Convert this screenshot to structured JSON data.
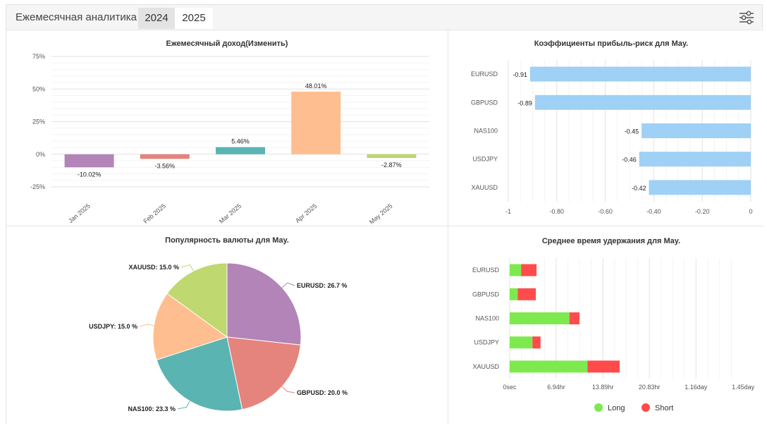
{
  "header": {
    "title": "Ежемесячная аналитика",
    "tabs": [
      {
        "label": "2024",
        "active": true
      },
      {
        "label": "2025",
        "active": false
      }
    ],
    "settings_icon": "sliders-icon"
  },
  "colors": {
    "long": "#7ee94f",
    "short": "#ff4b4b",
    "hbar": "#9fd0f5"
  },
  "chart_data": [
    {
      "type": "bar",
      "title": "Ежемесячный доход(Изменить)",
      "categories": [
        "Jan 2025",
        "Feb 2025",
        "Mar 2025",
        "Apr 2025",
        "May 2025"
      ],
      "values": [
        -10.02,
        -3.56,
        5.46,
        48.01,
        -2.87
      ],
      "value_labels": [
        "-10.02%",
        "-3.56%",
        "5.46%",
        "48.01%",
        "-2.87%"
      ],
      "bar_colors": [
        "#b384b8",
        "#e5837d",
        "#5ab4b2",
        "#ffbe8f",
        "#bcd76e"
      ],
      "ylim": [
        -25,
        75
      ],
      "yticks": [
        75,
        50,
        25,
        0,
        -25
      ],
      "ytick_labels": [
        "75%",
        "50%",
        "25%",
        "0%",
        "-25%"
      ],
      "grid": true
    },
    {
      "type": "bar",
      "orientation": "horizontal",
      "title": "Коэффициенты прибыль-риск для May.",
      "categories": [
        "EURUSD",
        "GBPUSD",
        "NAS100",
        "USDJPY",
        "XAUUSD"
      ],
      "values": [
        -0.91,
        -0.89,
        -0.45,
        -0.46,
        -0.42
      ],
      "value_labels": [
        "-0.91",
        "-0.89",
        "-0.45",
        "-0.46",
        "-0.42"
      ],
      "xlim": [
        -1,
        0
      ],
      "xticks": [
        -1,
        -0.8,
        -0.6,
        -0.4,
        -0.2,
        0
      ],
      "xtick_labels": [
        "-1",
        "-0.80",
        "-0.60",
        "-0.40",
        "-0.20",
        "0"
      ],
      "grid": true
    },
    {
      "type": "pie",
      "title": "Популярность валюты для May.",
      "labels": [
        "EURUSD",
        "GBPUSD",
        "NAS100",
        "USDJPY",
        "XAUUSD"
      ],
      "values": [
        26.7,
        20.0,
        23.3,
        15.0,
        15.0
      ],
      "value_labels": [
        "EURUSD: 26.7 %",
        "GBPUSD: 20.0 %",
        "NAS100: 23.3 %",
        "USDJPY: 15.0 %",
        "XAUUSD: 15.0 %"
      ],
      "colors": [
        "#b384b8",
        "#e5837d",
        "#5ab4b2",
        "#ffbe8f",
        "#bfd86f"
      ]
    },
    {
      "type": "bar",
      "orientation": "horizontal",
      "stacked": true,
      "title": "Среднее время удержания для May.",
      "categories": [
        "EURUSD",
        "GBPUSD",
        "NAS100",
        "USDJPY",
        "XAUUSD"
      ],
      "xlim_hours": [
        0,
        35
      ],
      "xticks_hours": [
        0,
        6.94,
        13.89,
        20.83,
        27.78,
        34.8
      ],
      "xtick_labels": [
        "0sec",
        "6.94hr",
        "13.89hr",
        "20.83hr",
        "1.16day",
        "1.45day"
      ],
      "series": [
        {
          "name": "Long",
          "values_hours": [
            1.7,
            1.2,
            8.9,
            3.4,
            11.6
          ]
        },
        {
          "name": "Short",
          "values_hours": [
            2.3,
            2.7,
            1.5,
            1.2,
            4.8
          ]
        }
      ],
      "legend": [
        "Long",
        "Short"
      ],
      "legend_position": "bottom",
      "grid": true
    }
  ]
}
